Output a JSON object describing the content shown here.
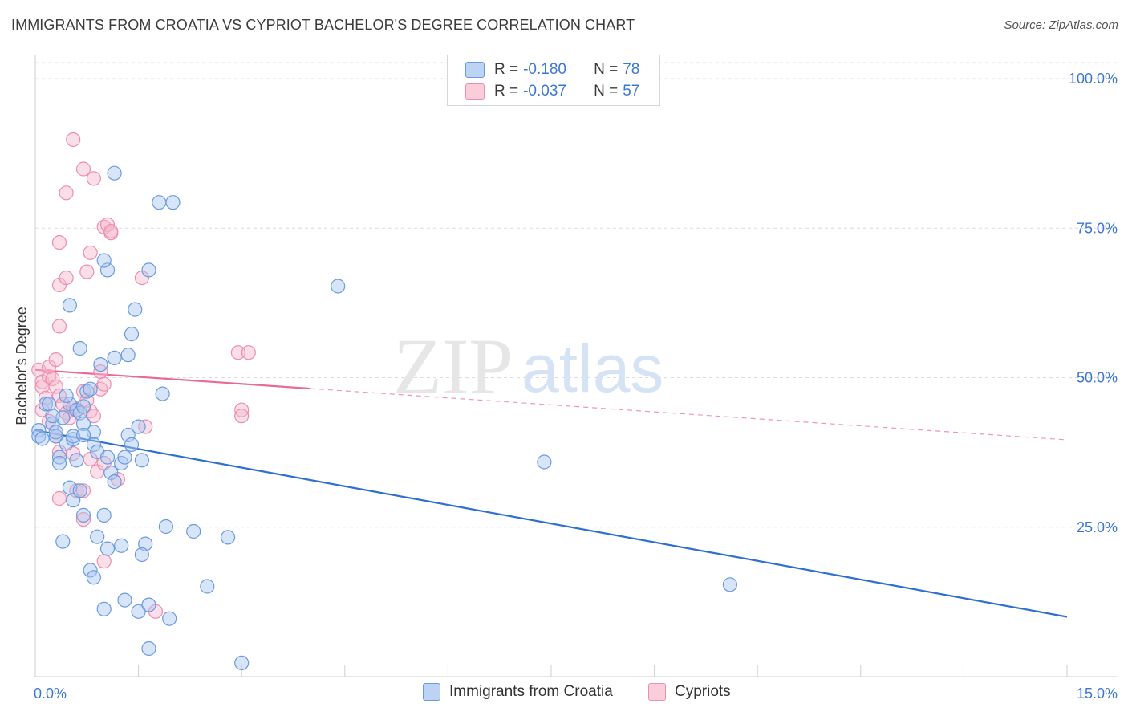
{
  "title": "IMMIGRANTS FROM CROATIA VS CYPRIOT BACHELOR'S DEGREE CORRELATION CHART",
  "source": "Source: ZipAtlas.com",
  "watermark": {
    "zip": "ZIP",
    "atlas": "atlas"
  },
  "legend": {
    "r_label": "R =",
    "n_label": "N =",
    "rows": [
      {
        "r": "-0.180",
        "n": "78"
      },
      {
        "r": "-0.037",
        "n": "57"
      }
    ]
  },
  "colors": {
    "blue_fill": "#a8c6f0",
    "blue_stroke": "#6a9be0",
    "blue_line": "#2f6fd0",
    "pink_fill": "#f7b8cc",
    "pink_stroke": "#ec8fae",
    "pink_line": "#e86a96",
    "axis_text": "#3b78d4",
    "grid": "#dcdcdc"
  },
  "chart_data": {
    "type": "scatter",
    "title": "IMMIGRANTS FROM CROATIA VS CYPRIOT BACHELOR'S DEGREE CORRELATION CHART",
    "xlabel": "",
    "ylabel": "Bachelor's Degree",
    "xlim": [
      0,
      15
    ],
    "ylim": [
      0,
      100
    ],
    "x_tick_labels": [
      "0.0%",
      "15.0%"
    ],
    "y_ticks": [
      25,
      50,
      75,
      100
    ],
    "y_tick_labels": [
      "25.0%",
      "50.0%",
      "75.0%",
      "100.0%"
    ],
    "grid": true,
    "legend_position": "top-center",
    "series": [
      {
        "name": "Immigrants from Croatia",
        "color": "blue",
        "R": -0.18,
        "N": 78,
        "trend": {
          "x": [
            0,
            15
          ],
          "y": [
            41.2,
            10.0
          ],
          "solid_until": 15
        },
        "points": [
          [
            0.05,
            41.2
          ],
          [
            0.05,
            40.2
          ],
          [
            0.1,
            39.8
          ],
          [
            0.15,
            45.6
          ],
          [
            0.2,
            45.6
          ],
          [
            0.25,
            42.3
          ],
          [
            0.3,
            40.2
          ],
          [
            0.3,
            40.9
          ],
          [
            0.35,
            36.7
          ],
          [
            0.35,
            35.7
          ],
          [
            0.4,
            43.3
          ],
          [
            0.45,
            39.0
          ],
          [
            0.5,
            45.6
          ],
          [
            0.45,
            47.0
          ],
          [
            0.25,
            43.6
          ],
          [
            0.55,
            39.7
          ],
          [
            0.55,
            40.2
          ],
          [
            0.6,
            44.6
          ],
          [
            0.65,
            44.1
          ],
          [
            0.7,
            45.2
          ],
          [
            0.7,
            42.3
          ],
          [
            0.75,
            47.7
          ],
          [
            0.8,
            48.1
          ],
          [
            0.85,
            40.9
          ],
          [
            0.85,
            38.8
          ],
          [
            0.9,
            37.6
          ],
          [
            0.95,
            52.2
          ],
          [
            1.05,
            36.7
          ],
          [
            1.1,
            34.1
          ],
          [
            1.15,
            32.6
          ],
          [
            1.25,
            35.7
          ],
          [
            1.3,
            36.7
          ],
          [
            1.35,
            40.4
          ],
          [
            1.4,
            38.8
          ],
          [
            1.5,
            41.8
          ],
          [
            1.55,
            36.2
          ],
          [
            1.05,
            68.0
          ],
          [
            1.0,
            69.6
          ],
          [
            0.65,
            54.9
          ],
          [
            0.5,
            62.1
          ],
          [
            1.15,
            53.3
          ],
          [
            1.35,
            53.8
          ],
          [
            1.4,
            57.3
          ],
          [
            1.45,
            61.4
          ],
          [
            1.65,
            68.0
          ],
          [
            1.85,
            47.3
          ],
          [
            1.15,
            84.2
          ],
          [
            1.8,
            79.3
          ],
          [
            2.0,
            79.3
          ],
          [
            4.4,
            65.3
          ],
          [
            0.5,
            31.6
          ],
          [
            0.55,
            29.5
          ],
          [
            0.4,
            22.6
          ],
          [
            0.65,
            31.1
          ],
          [
            0.7,
            27.0
          ],
          [
            1.0,
            27.0
          ],
          [
            0.9,
            23.4
          ],
          [
            1.05,
            21.4
          ],
          [
            1.25,
            21.9
          ],
          [
            0.8,
            17.8
          ],
          [
            0.85,
            16.6
          ],
          [
            1.6,
            22.2
          ],
          [
            1.55,
            20.4
          ],
          [
            1.9,
            25.1
          ],
          [
            2.3,
            24.3
          ],
          [
            2.8,
            23.3
          ],
          [
            1.3,
            12.8
          ],
          [
            1.0,
            11.3
          ],
          [
            1.5,
            10.9
          ],
          [
            1.65,
            12.0
          ],
          [
            1.95,
            9.7
          ],
          [
            2.5,
            15.1
          ],
          [
            1.65,
            4.7
          ],
          [
            3.0,
            2.3
          ],
          [
            7.4,
            35.9
          ],
          [
            10.1,
            15.4
          ],
          [
            0.7,
            40.4
          ],
          [
            0.6,
            36.2
          ]
        ]
      },
      {
        "name": "Cypriots",
        "color": "pink",
        "R": -0.037,
        "N": 57,
        "trend": {
          "x": [
            0,
            15
          ],
          "y": [
            51.3,
            39.6
          ],
          "solid_until": 4.0
        },
        "points": [
          [
            0.05,
            51.3
          ],
          [
            0.1,
            49.3
          ],
          [
            0.1,
            48.5
          ],
          [
            0.15,
            46.6
          ],
          [
            0.2,
            50.2
          ],
          [
            0.2,
            51.8
          ],
          [
            0.25,
            49.8
          ],
          [
            0.3,
            48.5
          ],
          [
            0.3,
            53.0
          ],
          [
            0.35,
            47.0
          ],
          [
            0.4,
            45.6
          ],
          [
            0.45,
            44.1
          ],
          [
            0.5,
            43.3
          ],
          [
            0.55,
            45.0
          ],
          [
            0.6,
            44.5
          ],
          [
            0.7,
            47.7
          ],
          [
            0.75,
            46.2
          ],
          [
            0.8,
            44.4
          ],
          [
            0.85,
            43.6
          ],
          [
            0.95,
            48.1
          ],
          [
            0.95,
            51.0
          ],
          [
            1.0,
            48.9
          ],
          [
            0.1,
            44.6
          ],
          [
            0.2,
            42.7
          ],
          [
            0.3,
            40.2
          ],
          [
            0.35,
            37.6
          ],
          [
            0.55,
            37.3
          ],
          [
            0.8,
            36.4
          ],
          [
            0.9,
            34.3
          ],
          [
            1.0,
            35.7
          ],
          [
            1.2,
            33.0
          ],
          [
            0.6,
            31.1
          ],
          [
            0.7,
            31.1
          ],
          [
            0.35,
            29.8
          ],
          [
            0.7,
            26.3
          ],
          [
            1.0,
            19.3
          ],
          [
            1.75,
            10.9
          ],
          [
            0.35,
            58.6
          ],
          [
            0.35,
            65.5
          ],
          [
            0.45,
            66.7
          ],
          [
            0.35,
            72.6
          ],
          [
            0.75,
            67.7
          ],
          [
            0.8,
            70.9
          ],
          [
            1.0,
            75.2
          ],
          [
            1.05,
            75.6
          ],
          [
            1.1,
            74.2
          ],
          [
            1.1,
            74.5
          ],
          [
            1.55,
            66.7
          ],
          [
            0.45,
            80.9
          ],
          [
            0.55,
            89.8
          ],
          [
            0.7,
            84.9
          ],
          [
            0.85,
            83.3
          ],
          [
            2.95,
            54.2
          ],
          [
            3.1,
            54.2
          ],
          [
            3.0,
            44.6
          ],
          [
            3.0,
            43.6
          ],
          [
            1.6,
            41.8
          ]
        ]
      }
    ]
  },
  "bottom_legend": [
    {
      "label": "Immigrants from Croatia"
    },
    {
      "label": "Cypriots"
    }
  ]
}
